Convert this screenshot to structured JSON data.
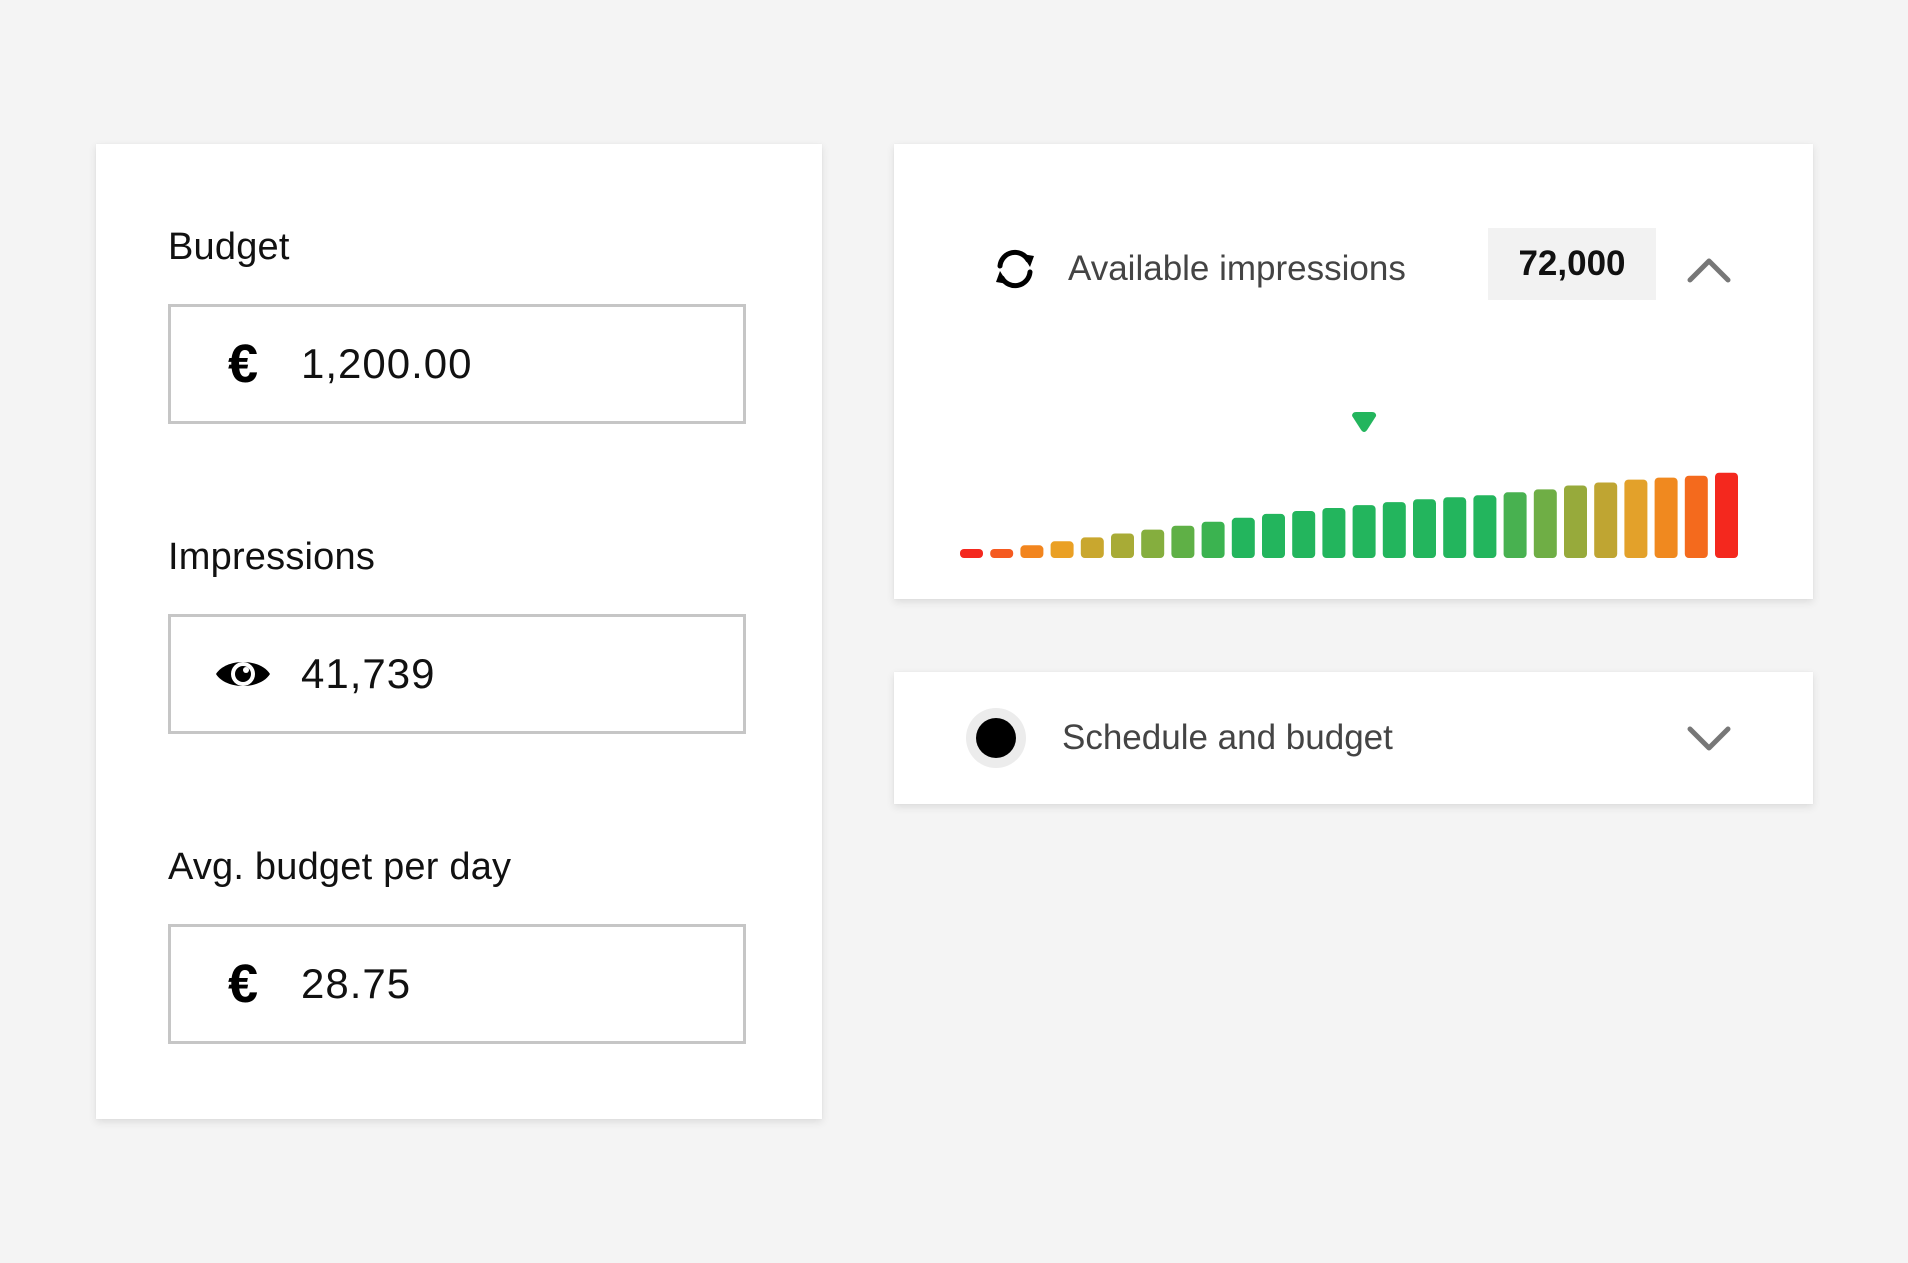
{
  "form": {
    "budget": {
      "label": "Budget",
      "icon": "euro-icon",
      "symbol": "€",
      "value": "1,200.00"
    },
    "impressions": {
      "label": "Impressions",
      "icon": "eye-icon",
      "value": "41,739"
    },
    "avg_budget": {
      "label": "Avg. budget per day",
      "icon": "euro-icon",
      "symbol": "€",
      "value": "28.75"
    }
  },
  "impressions_panel": {
    "refresh_icon": "refresh-icon",
    "label": "Available impressions",
    "value": "72,000",
    "chevron_icon": "chevron-up-icon",
    "expanded": true
  },
  "schedule_panel": {
    "status_icon": "status-dot-icon",
    "label": "Schedule and budget",
    "chevron_icon": "chevron-down-icon",
    "expanded": false
  },
  "colors": {
    "green": "#23b55d",
    "red": "#f4281e",
    "orange": "#f07a1e",
    "amber": "#e5a12a",
    "olive": "#95ad3c"
  },
  "chart_data": {
    "type": "bar",
    "values": [
      4,
      8,
      13,
      17,
      21,
      25,
      29,
      33,
      37,
      41,
      45,
      48,
      51,
      54,
      57,
      60,
      62,
      64,
      67,
      70,
      74,
      77,
      80,
      82,
      84,
      87
    ],
    "colors": [
      "#f4281e",
      "#f55a20",
      "#f2851e",
      "#eaa024",
      "#c9a72e",
      "#a8ab36",
      "#85ae3e",
      "#5fb046",
      "#3bb350",
      "#23b55d",
      "#23b55d",
      "#23b55d",
      "#23b55d",
      "#23b55d",
      "#23b55d",
      "#23b55d",
      "#23b55d",
      "#23b55d",
      "#48b150",
      "#6fae45",
      "#97aa3b",
      "#bfa532",
      "#e3a12a",
      "#f0891f",
      "#f46a1d",
      "#f4281e"
    ],
    "marker_index": 13,
    "marker_color": "#23b55d",
    "ylim": [
      0,
      100
    ]
  }
}
